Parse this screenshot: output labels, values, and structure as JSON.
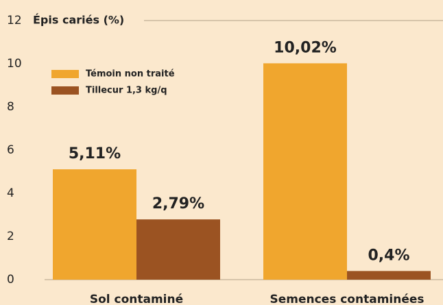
{
  "chart_data": {
    "type": "bar",
    "title": "Épis cariés (%)",
    "categories": [
      "Sol contaminé",
      "Semences contaminées"
    ],
    "series": [
      {
        "name": "Témoin non traité",
        "color": "#f0a62e",
        "values": [
          5.11,
          10.02
        ],
        "value_labels": [
          "5,11%",
          "10,02%"
        ]
      },
      {
        "name": "Tillecur 1,3 kg/q",
        "color": "#9b5322",
        "values": [
          2.79,
          0.4
        ],
        "value_labels": [
          "2,79%",
          "0,4%"
        ]
      }
    ],
    "ylim": [
      0,
      12
    ],
    "yticks": [
      0,
      2,
      4,
      6,
      8,
      10,
      12
    ],
    "legend": "upper left"
  }
}
